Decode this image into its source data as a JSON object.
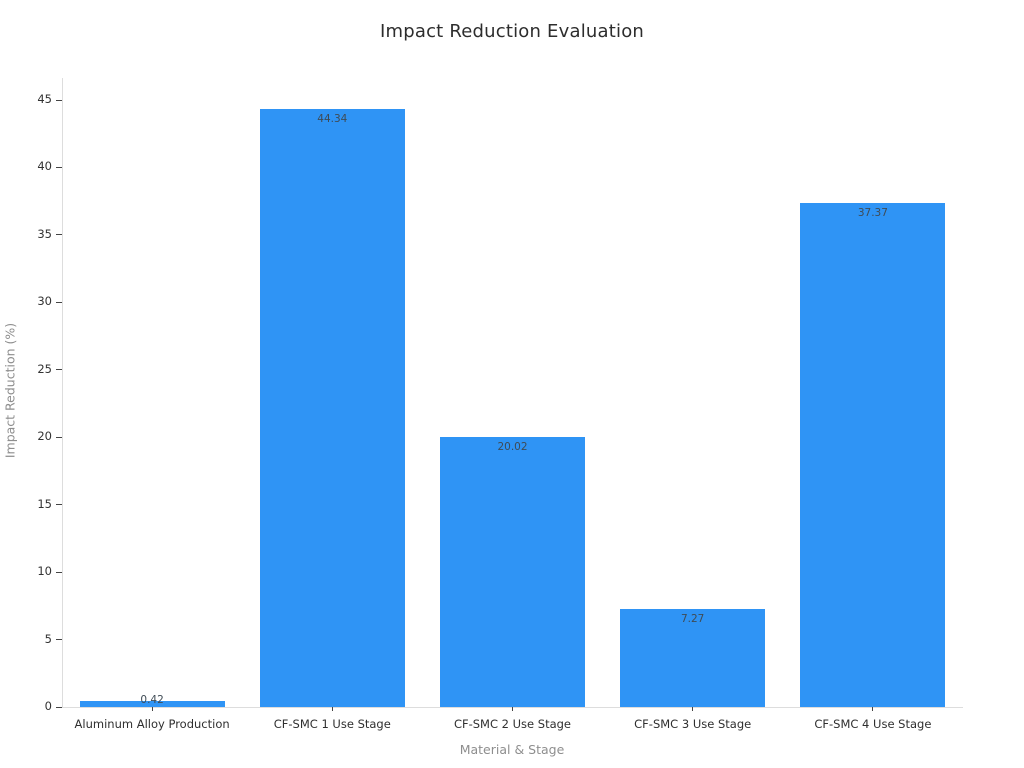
{
  "title": "Impact Reduction Evaluation",
  "chart_data": {
    "type": "bar",
    "title": "Impact Reduction Evaluation",
    "xlabel": "Material & Stage",
    "ylabel": "Impact Reduction (%)",
    "categories": [
      "Aluminum Alloy Production",
      "CF-SMC 1 Use Stage",
      "CF-SMC 2 Use Stage",
      "CF-SMC 3 Use Stage",
      "CF-SMC 4 Use Stage"
    ],
    "values": [
      0.42,
      44.34,
      20.02,
      7.27,
      37.37
    ],
    "value_label_decimals": 2,
    "ylim": [
      0,
      46.6
    ],
    "yticks": [
      0,
      5,
      10,
      15,
      20,
      25,
      30,
      35,
      40,
      45
    ],
    "grid": false,
    "legend": null,
    "colors": {
      "bar": "#2f94f5",
      "bar_value_label": "#3f4b55",
      "tick_label": "#333333",
      "axis_label": "#8e8e8e",
      "title": "#2d2d2d",
      "spine": "#dddddd",
      "background": "#ffffff"
    }
  }
}
